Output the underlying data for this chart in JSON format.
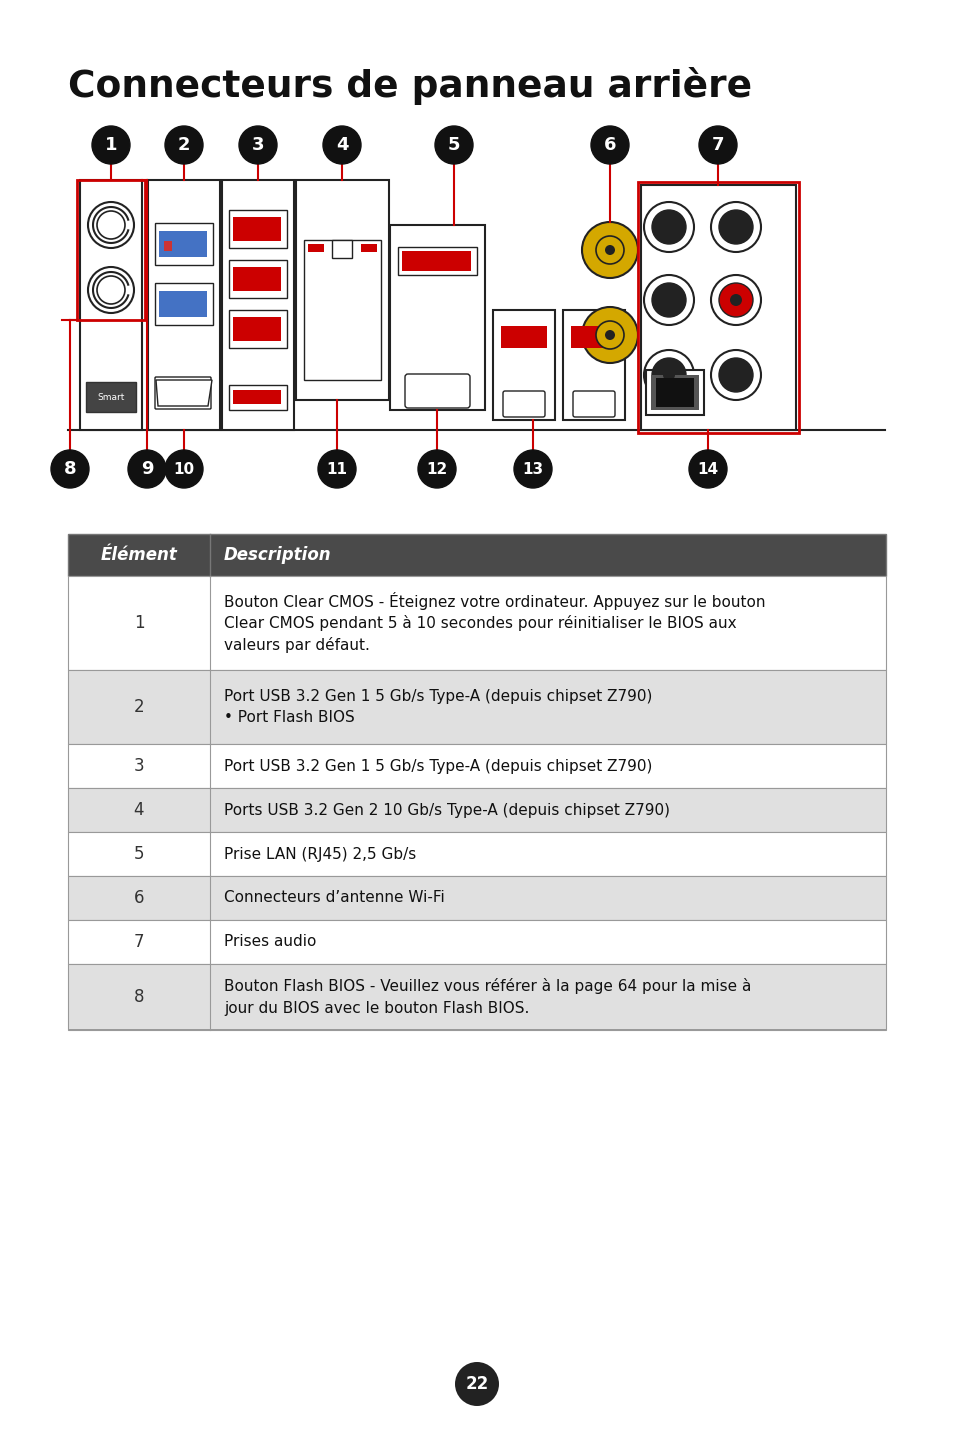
{
  "title": "Connecteurs de panneau arrère",
  "title_proper": "Connecteurs de panneau arrière",
  "page_number": "22",
  "bg_color": "#ffffff",
  "table_header_bg": "#4a4a4a",
  "table_header_fg": "#ffffff",
  "table_row_alt_bg": "#e0e0e0",
  "table_row_bg": "#ffffff",
  "table_border": "#999999",
  "accent_red": "#cc0000",
  "accent_blue": "#4472c4",
  "accent_gold": "#d4a800",
  "rows": [
    {
      "num": "1",
      "alt": false,
      "desc": "Bouton Clear CMOS - Éteignez votre ordinateur. Appuyez sur le bouton\nClear CMOS pendant 5 à 10 secondes pour réinitialiser le BIOS aux\nvaleurs par défaut.",
      "lines": 3
    },
    {
      "num": "2",
      "alt": true,
      "desc": "Port USB 3.2 Gen 1 5 Gb/s Type-A (depuis chipset Z790)\n• Port Flash BIOS",
      "lines": 2
    },
    {
      "num": "3",
      "alt": false,
      "desc": "Port USB 3.2 Gen 1 5 Gb/s Type-A (depuis chipset Z790)",
      "lines": 1
    },
    {
      "num": "4",
      "alt": true,
      "desc": "Ports USB 3.2 Gen 2 10 Gb/s Type-A (depuis chipset Z790)",
      "lines": 1
    },
    {
      "num": "5",
      "alt": false,
      "desc": "Prise LAN (RJ45) 2,5 Gb/s",
      "lines": 1
    },
    {
      "num": "6",
      "alt": true,
      "desc": "Connecteurs d’antenne Wi-Fi",
      "lines": 1
    },
    {
      "num": "7",
      "alt": false,
      "desc": "Prises audio",
      "lines": 1
    },
    {
      "num": "8",
      "alt": true,
      "desc": "Bouton Flash BIOS - Veuillez vous référer à la page 64 pour la mise à\njour du BIOS avec le bouton Flash BIOS.",
      "lines": 2
    }
  ]
}
